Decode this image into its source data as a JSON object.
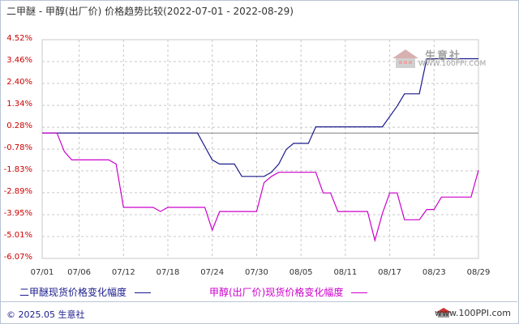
{
  "title": "二甲醚 - 甲醇(出厂价) 价格趋势比较(2022-07-01 - 2022-08-29)",
  "legend": {
    "series1": "二甲醚现货价格变化幅度",
    "series2": "甲醇(出厂价)现货价格变化幅度"
  },
  "footer": {
    "left": "© 2025.05 生意社",
    "right": "www.100PPI.com"
  },
  "watermark": {
    "brand": "生意社",
    "url": "WWW.100PPI.COM"
  },
  "colors": {
    "series1": "#1a1a8c",
    "series2": "#cc00cc",
    "ytick": "#cc0000",
    "grid": "#c8c8c8",
    "zero_line": "#808080"
  },
  "chart_data": {
    "type": "line",
    "title": "二甲醚 - 甲醇(出厂价) 价格趋势比较(2022-07-01 - 2022-08-29)",
    "x_range": [
      "2022-07-01",
      "2022-08-29"
    ],
    "x_tick_labels": [
      "07/01",
      "07/06",
      "07/12",
      "07/18",
      "07/24",
      "07/30",
      "08/05",
      "08/11",
      "08/17",
      "08/23",
      "08/29"
    ],
    "x_tick_dates": [
      "2022-07-01",
      "2022-07-06",
      "2022-07-12",
      "2022-07-18",
      "2022-07-24",
      "2022-07-30",
      "2022-08-05",
      "2022-08-11",
      "2022-08-17",
      "2022-08-23",
      "2022-08-29"
    ],
    "y_tick_labels": [
      "4.52%",
      "3.46%",
      "2.40%",
      "1.34%",
      "0.28%",
      "-0.78%",
      "-1.83%",
      "-2.89%",
      "-3.95%",
      "-5.01%",
      "-6.07%"
    ],
    "y_ticks": [
      4.52,
      3.46,
      2.4,
      1.34,
      0.28,
      -0.78,
      -1.83,
      -2.89,
      -3.95,
      -5.01,
      -6.07
    ],
    "ylim": [
      -6.07,
      4.52
    ],
    "grid": true,
    "series": [
      {
        "name": "二甲醚现货价格变化幅度",
        "color": "#1a1a8c",
        "points": [
          [
            "2022-07-01",
            0.0
          ],
          [
            "2022-07-22",
            0.0
          ],
          [
            "2022-07-24",
            -1.3
          ],
          [
            "2022-07-25",
            -1.5
          ],
          [
            "2022-07-27",
            -1.5
          ],
          [
            "2022-07-28",
            -2.1
          ],
          [
            "2022-07-31",
            -2.1
          ],
          [
            "2022-08-01",
            -1.9
          ],
          [
            "2022-08-02",
            -1.5
          ],
          [
            "2022-08-03",
            -0.8
          ],
          [
            "2022-08-04",
            -0.5
          ],
          [
            "2022-08-06",
            -0.5
          ],
          [
            "2022-08-07",
            0.3
          ],
          [
            "2022-08-14",
            0.3
          ],
          [
            "2022-08-16",
            0.3
          ],
          [
            "2022-08-18",
            1.3
          ],
          [
            "2022-08-19",
            1.9
          ],
          [
            "2022-08-21",
            1.9
          ],
          [
            "2022-08-22",
            3.6
          ],
          [
            "2022-08-29",
            3.6
          ]
        ]
      },
      {
        "name": "甲醇(出厂价)现货价格变化幅度",
        "color": "#cc00cc",
        "points": [
          [
            "2022-07-01",
            0.0
          ],
          [
            "2022-07-03",
            0.0
          ],
          [
            "2022-07-04",
            -0.9
          ],
          [
            "2022-07-05",
            -1.3
          ],
          [
            "2022-07-10",
            -1.3
          ],
          [
            "2022-07-11",
            -1.5
          ],
          [
            "2022-07-12",
            -3.6
          ],
          [
            "2022-07-16",
            -3.6
          ],
          [
            "2022-07-17",
            -3.8
          ],
          [
            "2022-07-18",
            -3.6
          ],
          [
            "2022-07-23",
            -3.6
          ],
          [
            "2022-07-24",
            -4.7
          ],
          [
            "2022-07-25",
            -3.8
          ],
          [
            "2022-07-29",
            -3.8
          ],
          [
            "2022-07-30",
            -3.8
          ],
          [
            "2022-07-31",
            -2.4
          ],
          [
            "2022-08-01",
            -2.1
          ],
          [
            "2022-08-02",
            -1.9
          ],
          [
            "2022-08-07",
            -1.9
          ],
          [
            "2022-08-08",
            -2.9
          ],
          [
            "2022-08-09",
            -2.9
          ],
          [
            "2022-08-10",
            -3.8
          ],
          [
            "2022-08-14",
            -3.8
          ],
          [
            "2022-08-15",
            -5.2
          ],
          [
            "2022-08-16",
            -3.9
          ],
          [
            "2022-08-17",
            -2.9
          ],
          [
            "2022-08-18",
            -2.9
          ],
          [
            "2022-08-19",
            -4.2
          ],
          [
            "2022-08-21",
            -4.2
          ],
          [
            "2022-08-22",
            -3.7
          ],
          [
            "2022-08-23",
            -3.7
          ],
          [
            "2022-08-24",
            -3.1
          ],
          [
            "2022-08-28",
            -3.1
          ],
          [
            "2022-08-29",
            -1.8
          ]
        ]
      }
    ]
  }
}
